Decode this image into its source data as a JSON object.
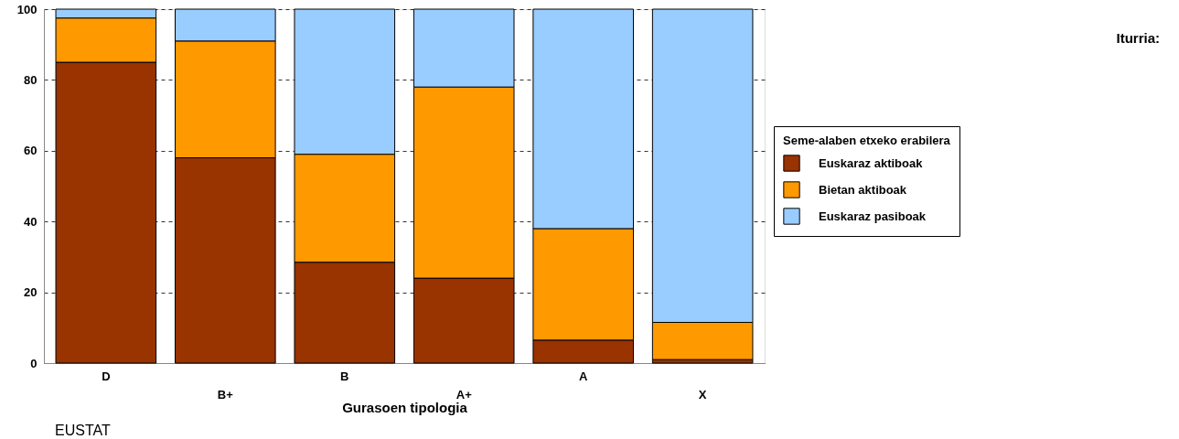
{
  "chart_data": {
    "type": "bar",
    "stacked": true,
    "xlabel": "Gurasoen tipologia",
    "legend_title": "Seme-alaben etxeko erabilera",
    "categories": [
      "D",
      "B+",
      "B",
      "A+",
      "A",
      "X"
    ],
    "series": [
      {
        "name": "Euskaraz aktiboak",
        "color": "#993300",
        "values": [
          85,
          58,
          28.5,
          24,
          6.5,
          1
        ]
      },
      {
        "name": "Bietan aktiboak",
        "color": "#ff9900",
        "values": [
          12.5,
          33,
          30.5,
          54,
          31.5,
          10.5
        ]
      },
      {
        "name": "Euskaraz pasiboak",
        "color": "#99ccff",
        "values": [
          2.5,
          9,
          41,
          22,
          62,
          88.5
        ]
      }
    ],
    "ylim": [
      0,
      100
    ],
    "yticks": [
      0,
      20,
      40,
      60,
      80,
      100
    ],
    "grid": "y",
    "legend": "right",
    "annotations": [
      "Iturria:",
      "EUSTAT"
    ]
  }
}
